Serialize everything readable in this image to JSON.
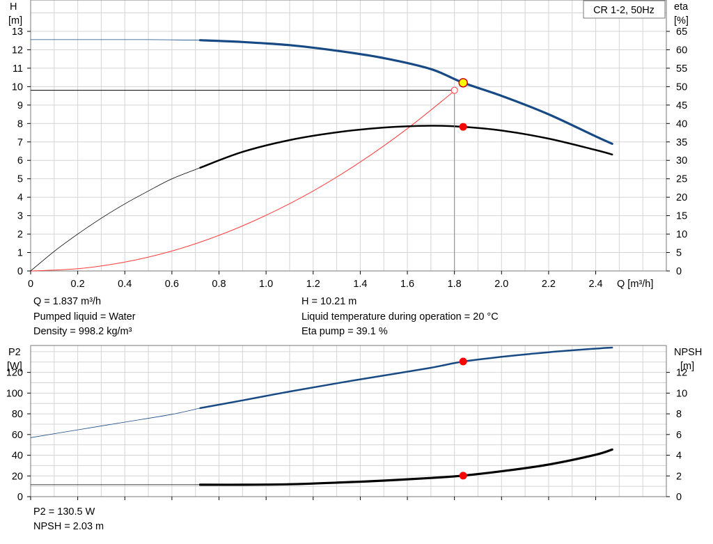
{
  "chart_data": [
    {
      "type": "line",
      "title": "CR 1-2, 50Hz",
      "xlabel": "Q [m³/h]",
      "ylabel_left": [
        "H",
        "[m]"
      ],
      "ylabel_right": [
        "eta",
        "[%]"
      ],
      "xlim": [
        0,
        2.7
      ],
      "ylim_left": [
        0,
        14.7
      ],
      "ylim_right": [
        0,
        73.5
      ],
      "x_ticks": [
        "0",
        "0.2",
        "0.4",
        "0.6",
        "0.8",
        "1.0",
        "1.2",
        "1.4",
        "1.6",
        "1.8",
        "2.0",
        "2.2",
        "2.4"
      ],
      "y_ticks_left": [
        "0",
        "1",
        "2",
        "3",
        "4",
        "5",
        "6",
        "7",
        "8",
        "9",
        "10",
        "11",
        "12",
        "13"
      ],
      "y_ticks_right": [
        "0",
        "5",
        "10",
        "15",
        "20",
        "25",
        "30",
        "35",
        "40",
        "45",
        "50",
        "55",
        "60",
        "65"
      ],
      "grid": true,
      "series": [
        {
          "name": "H",
          "color": "#174a84",
          "axis": "left",
          "thin_x": [
            0,
            0.1,
            0.3,
            0.5,
            0.72
          ],
          "thin_y": [
            12.55,
            12.55,
            12.55,
            12.55,
            12.52
          ],
          "x": [
            0.72,
            0.9,
            1.1,
            1.3,
            1.5,
            1.7,
            1.837,
            2.0,
            2.2,
            2.4,
            2.47
          ],
          "y": [
            12.52,
            12.42,
            12.25,
            11.95,
            11.55,
            10.95,
            10.21,
            9.5,
            8.5,
            7.3,
            6.9
          ]
        },
        {
          "name": "Eta",
          "color": "#000000",
          "axis": "right",
          "thin_x": [
            0,
            0.1,
            0.2,
            0.3,
            0.4,
            0.5,
            0.6,
            0.72
          ],
          "thin_y": [
            0,
            5.3,
            10.0,
            14.3,
            18.2,
            21.7,
            25.0,
            28.0
          ],
          "x": [
            0.72,
            0.9,
            1.1,
            1.3,
            1.5,
            1.7,
            1.837,
            2.0,
            2.2,
            2.4,
            2.47
          ],
          "y": [
            28.0,
            32.3,
            35.5,
            37.6,
            38.9,
            39.4,
            39.1,
            38.1,
            35.9,
            32.8,
            31.6
          ]
        },
        {
          "name": "System curve",
          "color": "#ff3c3c",
          "axis": "left",
          "x": [
            0,
            0.2,
            0.4,
            0.6,
            0.8,
            1.0,
            1.2,
            1.4,
            1.6,
            1.8
          ],
          "y": [
            0,
            0.12,
            0.48,
            1.08,
            1.93,
            3.02,
            4.34,
            5.91,
            7.72,
            9.77
          ]
        }
      ],
      "duty_point": {
        "q": 1.837,
        "h": 10.21,
        "eta": 39.1
      },
      "reference_point": {
        "q": 1.8,
        "h": 9.8
      }
    },
    {
      "type": "line",
      "xlabel": "",
      "ylabel_left": [
        "P2",
        "[W]"
      ],
      "ylabel_right": [
        "NPSH",
        "[m]"
      ],
      "xlim": [
        0,
        2.7
      ],
      "ylim_left": [
        0,
        146
      ],
      "ylim_right": [
        0,
        14.6
      ],
      "y_ticks_left": [
        "0",
        "20",
        "40",
        "60",
        "80",
        "100",
        "120"
      ],
      "y_ticks_right": [
        "0",
        "2",
        "4",
        "6",
        "8",
        "10",
        "12"
      ],
      "grid": true,
      "series": [
        {
          "name": "P2",
          "color": "#174a84",
          "axis": "left",
          "thin_x": [
            0,
            0.2,
            0.4,
            0.6,
            0.72
          ],
          "thin_y": [
            57.0,
            64.5,
            72.0,
            79.5,
            85.5
          ],
          "x": [
            0.72,
            0.9,
            1.1,
            1.3,
            1.5,
            1.7,
            1.837,
            2.0,
            2.2,
            2.4,
            2.47
          ],
          "y": [
            85.5,
            93.0,
            101.5,
            109.5,
            117.0,
            124.5,
            130.5,
            135.0,
            139.5,
            143.0,
            144.0
          ]
        },
        {
          "name": "NPSH",
          "color": "#000000",
          "axis": "right",
          "thin_x": [
            0,
            0.2,
            0.4,
            0.6,
            0.72
          ],
          "thin_y": [
            1.15,
            1.15,
            1.15,
            1.15,
            1.15
          ],
          "x": [
            0.72,
            0.9,
            1.1,
            1.3,
            1.5,
            1.7,
            1.837,
            2.0,
            2.2,
            2.4,
            2.47
          ],
          "y": [
            1.15,
            1.15,
            1.2,
            1.35,
            1.55,
            1.8,
            2.03,
            2.45,
            3.1,
            4.05,
            4.55
          ]
        }
      ],
      "duty_point": {
        "q": 1.837,
        "p2": 130.5,
        "npsh": 2.03
      }
    }
  ],
  "info": {
    "q": "Q = 1.837 m³/h",
    "h": "H = 10.21 m",
    "liquid": "Pumped liquid = Water",
    "temp": "Liquid temperature during operation = 20 °C",
    "density": "Density = 998.2 kg/m³",
    "eta": "Eta pump = 39.1 %",
    "p2": "P2 = 130.5 W",
    "npsh": "NPSH = 2.03 m"
  },
  "colors": {
    "blue_curve": "#174a84",
    "red_point": "#ff0000",
    "yellow_point": "#ffff00",
    "grid": "#d4d4d4"
  }
}
